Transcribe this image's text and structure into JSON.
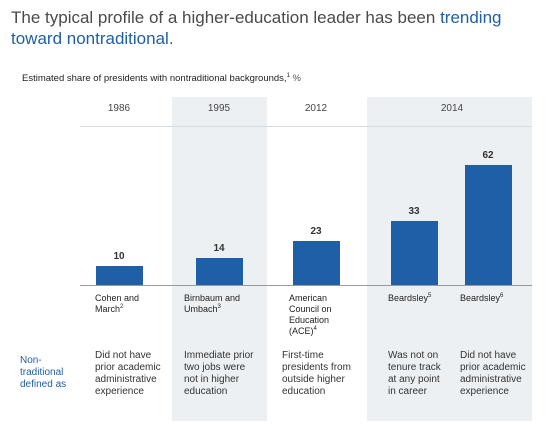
{
  "title": {
    "part1": "The typical profile of a higher-education leader has been ",
    "highlight": "trending toward nontraditional."
  },
  "subtitle": {
    "text": "Estimated share of presidents with nontraditional backgrounds,",
    "footnote": "1",
    "unit": " %"
  },
  "row_label": {
    "line1": "Non-",
    "line2": "traditional",
    "line3": "defined as"
  },
  "colors": {
    "bar": "#1f5fa8",
    "band": "#ecf0f3",
    "highlight": "#1f5fa8"
  },
  "chart_data": {
    "type": "bar",
    "ylim": [
      0,
      70
    ],
    "categories": [
      "Cohen and March",
      "Birnbaum and Umbach",
      "American Council on Education (ACE)",
      "Beardsley",
      "Beardsley"
    ],
    "values": [
      10,
      14,
      23,
      33,
      62
    ],
    "years": [
      "1986",
      "1995",
      "2012",
      "2014"
    ],
    "bars": [
      {
        "value": 10,
        "label_lines": [
          "Cohen and",
          "March"
        ],
        "footnote": "2",
        "definition_lines": [
          "Did not have",
          "prior academic",
          "administrative",
          "experience"
        ]
      },
      {
        "value": 14,
        "label_lines": [
          "Birnbaum and",
          "Umbach"
        ],
        "footnote": "3",
        "definition_lines": [
          "Immediate prior",
          "two jobs were",
          "not in higher",
          "education"
        ]
      },
      {
        "value": 23,
        "label_lines": [
          "American",
          "Council on",
          "Education",
          "(ACE)"
        ],
        "footnote": "4",
        "definition_lines": [
          "First-time",
          "presidents from",
          "outside higher",
          "education"
        ]
      },
      {
        "value": 33,
        "label_lines": [
          "Beardsley"
        ],
        "footnote": "5",
        "definition_lines": [
          "Was not on",
          "tenure track",
          "at any point",
          "in career"
        ]
      },
      {
        "value": 62,
        "label_lines": [
          "Beardsley"
        ],
        "footnote": "6",
        "definition_lines": [
          "Did not have",
          "prior academic",
          "administrative",
          "experience"
        ]
      }
    ]
  }
}
